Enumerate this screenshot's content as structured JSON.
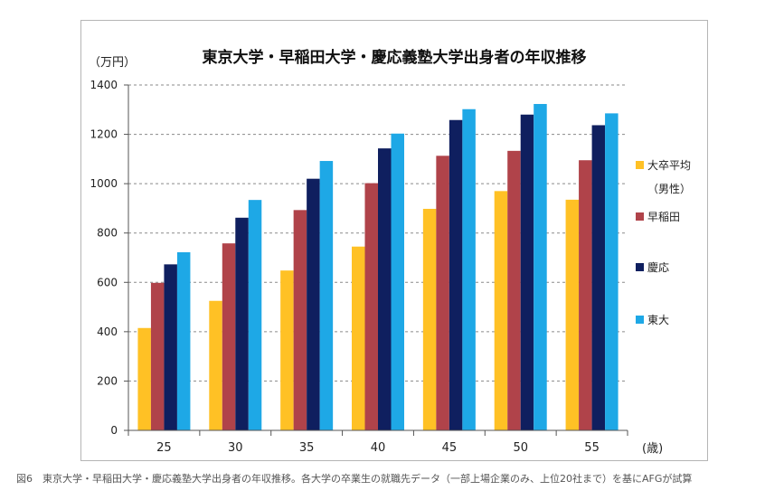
{
  "chart_data": {
    "type": "bar",
    "title": "東京大学・早稲田大学・慶応義塾大学出身者の年収推移",
    "ylabel": "（万円）",
    "xlabel": "(歳)",
    "categories": [
      "25",
      "30",
      "35",
      "40",
      "45",
      "50",
      "55"
    ],
    "ylim": [
      0,
      1400
    ],
    "yticks": [
      0,
      200,
      400,
      600,
      800,
      1000,
      1200,
      1400
    ],
    "grid": true,
    "legend_position": "right",
    "series": [
      {
        "name": "大卒平均（男性）",
        "legend_lines": [
          "大卒平均",
          "（男性）"
        ],
        "color": "#ffc125",
        "values": [
          415,
          525,
          648,
          745,
          898,
          970,
          935
        ]
      },
      {
        "name": "早稲田",
        "legend_lines": [
          "早稲田"
        ],
        "color": "#b0434a",
        "values": [
          598,
          758,
          893,
          1002,
          1113,
          1133,
          1095
        ]
      },
      {
        "name": "慶応",
        "legend_lines": [
          "慶応"
        ],
        "color": "#0f1f5f",
        "values": [
          673,
          862,
          1020,
          1143,
          1258,
          1280,
          1237
        ]
      },
      {
        "name": "東大",
        "legend_lines": [
          "東大"
        ],
        "color": "#1ea8e6",
        "values": [
          722,
          934,
          1092,
          1203,
          1302,
          1323,
          1285
        ]
      }
    ]
  },
  "caption": "図6　東京大学・早稲田大学・慶応義塾大学出身者の年収推移。各大学の卒業生の就職先データ（一部上場企業のみ、上位20社まで）を基にAFGが試算"
}
